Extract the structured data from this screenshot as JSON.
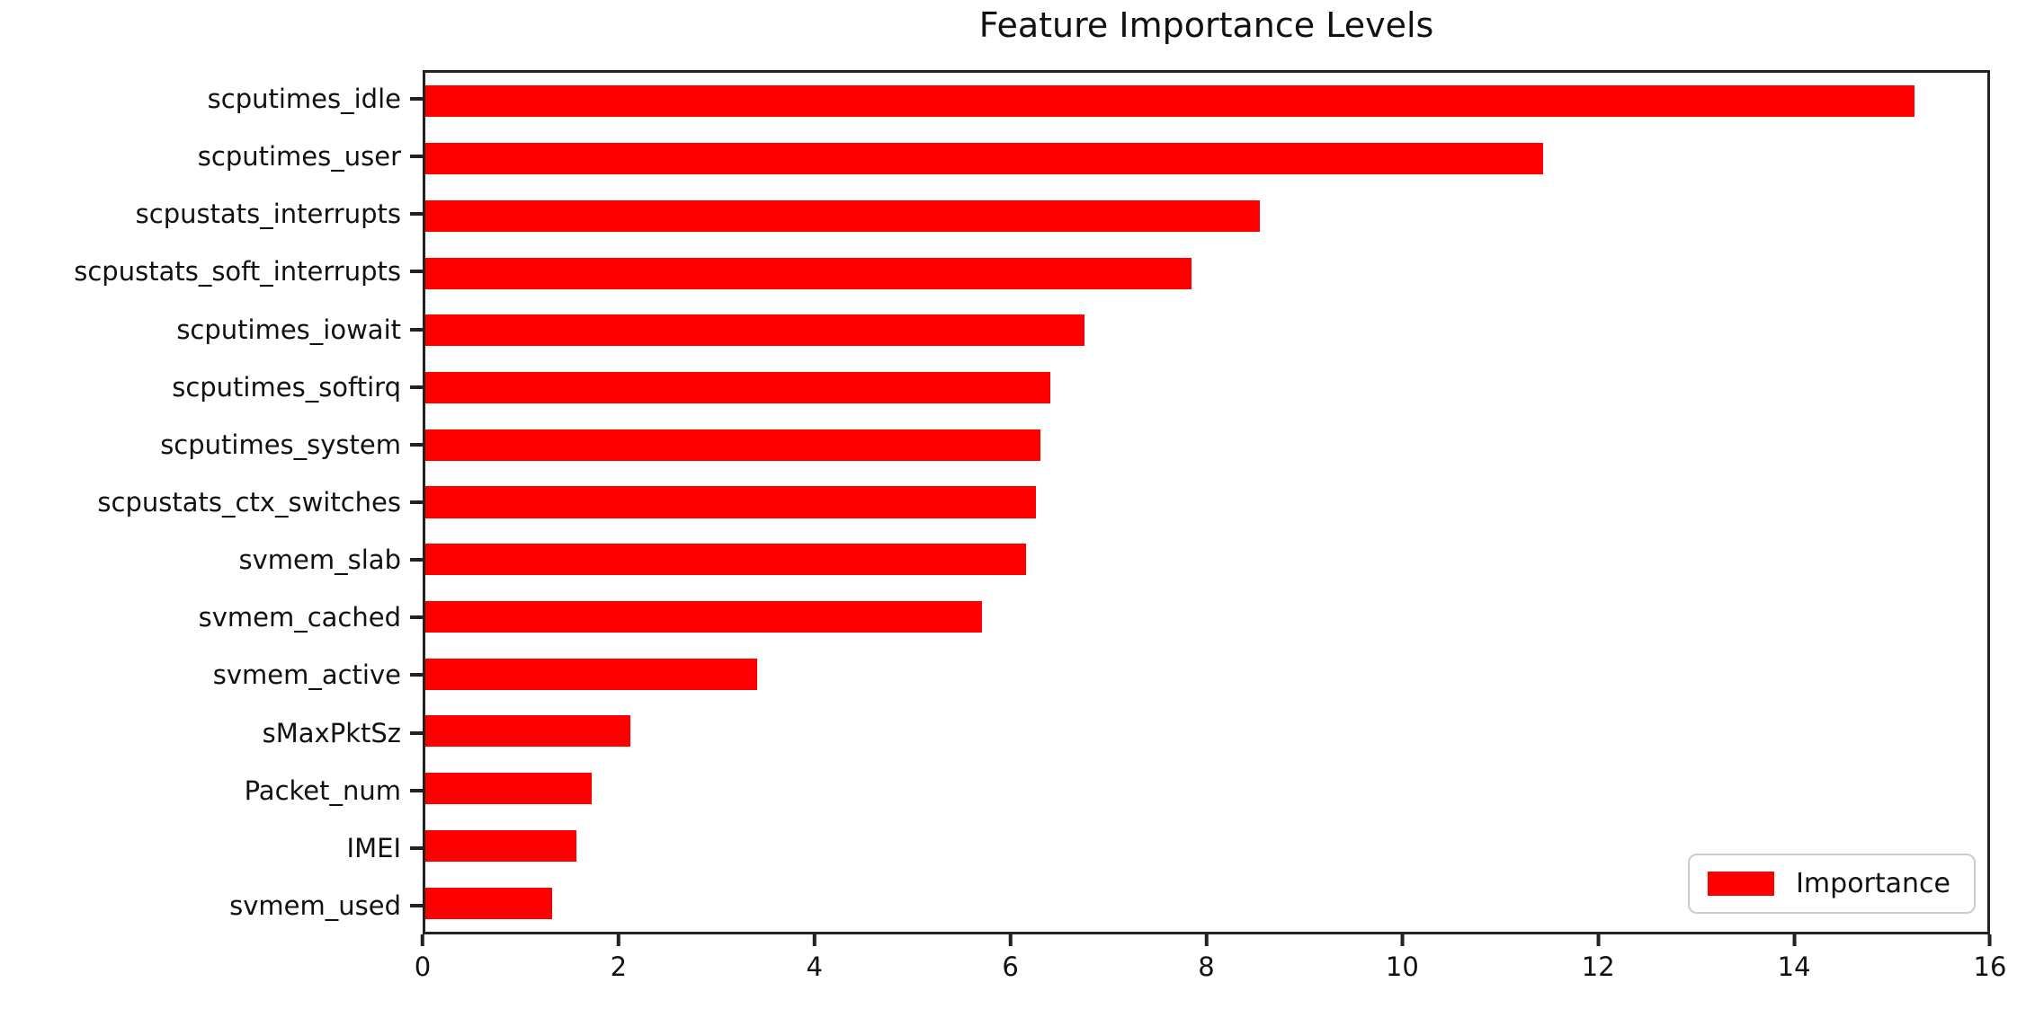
{
  "chart_data": {
    "type": "bar",
    "orientation": "horizontal",
    "title": "Feature Importance Levels",
    "categories": [
      "scputimes_idle",
      "scputimes_user",
      "scpustats_interrupts",
      "scpustats_soft_interrupts",
      "scputimes_iowait",
      "scputimes_softirq",
      "scputimes_system",
      "scpustats_ctx_switches",
      "svmem_slab",
      "svmem_cached",
      "svmem_active",
      "sMaxPktSz",
      "Packet_num",
      "IMEI",
      "svmem_used"
    ],
    "values": [
      15.25,
      11.45,
      8.55,
      7.85,
      6.75,
      6.4,
      6.3,
      6.25,
      6.15,
      5.7,
      3.4,
      2.1,
      1.7,
      1.55,
      1.3
    ],
    "xlabel": "",
    "ylabel": "",
    "xlim": [
      0,
      16
    ],
    "x_ticks": [
      0,
      2,
      4,
      6,
      8,
      10,
      12,
      14,
      16
    ],
    "grid": false,
    "bar_color": "#ff0000",
    "legend": {
      "label": "Importance",
      "position": "lower right"
    }
  }
}
